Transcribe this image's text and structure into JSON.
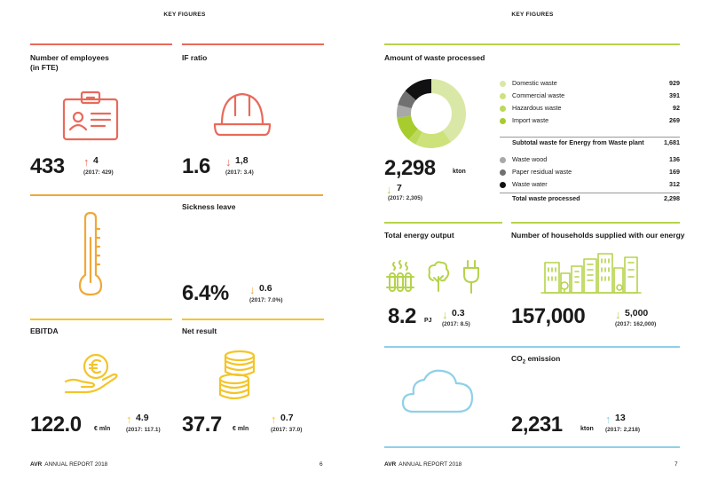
{
  "left_page": {
    "header": "KEY FIGURES",
    "employees": {
      "label_line1": "Number of employees",
      "label_line2": "(in FTE)",
      "value": "433",
      "arrow": "↑",
      "delta": "4",
      "previous": "(2017: 429)",
      "icon": "id-badge-icon"
    },
    "if_ratio": {
      "label": "IF ratio",
      "value": "1.6",
      "arrow": "↓",
      "delta": "1,8",
      "previous": "(2017: 3.4)",
      "icon": "hard-hat-icon"
    },
    "sickness": {
      "label": "Sickness leave",
      "value": "6.4%",
      "arrow": "↓",
      "delta": "0.6",
      "previous": "(2017: 7.0%)",
      "icon": "thermometer-icon"
    },
    "ebitda": {
      "label": "EBITDA",
      "value": "122.0",
      "unit": "€ mln",
      "arrow": "↑",
      "delta": "4.9",
      "previous": "(2017: 117.1)",
      "icon": "euro-coin-hand-icon"
    },
    "net_result": {
      "label": "Net result",
      "value": "37.7",
      "unit": "€ mln",
      "arrow": "↑",
      "delta": "0.7",
      "previous": "(2017: 37.0)",
      "icon": "coin-stack-icon"
    },
    "footer": {
      "brand": "AVR",
      "text": "ANNUAL REPORT 2018",
      "page": "6"
    }
  },
  "right_page": {
    "header": "KEY FIGURES",
    "waste": {
      "label": "Amount of waste processed",
      "value": "2,298",
      "unit": "kton",
      "arrow": "↓",
      "delta": "7",
      "previous": "(2017: 2,305)",
      "items": [
        {
          "name": "Domestic waste",
          "value": "929",
          "color": "#d9e8a6"
        },
        {
          "name": "Commercial waste",
          "value": "391",
          "color": "#cde27a"
        },
        {
          "name": "Hazardous waste",
          "value": "92",
          "color": "#bcd95a"
        },
        {
          "name": "Import waste",
          "value": "269",
          "color": "#a6cc2e"
        }
      ],
      "subtotal": {
        "name": "Subtotal waste for Energy from Waste plant",
        "value": "1,681"
      },
      "items2": [
        {
          "name": "Waste wood",
          "value": "136",
          "color": "#a8a8a8"
        },
        {
          "name": "Paper residual waste",
          "value": "169",
          "color": "#707070"
        },
        {
          "name": "Waste water",
          "value": "312",
          "color": "#111111"
        }
      ],
      "total": {
        "name": "Total waste processed",
        "value": "2,298"
      }
    },
    "energy": {
      "label": "Total energy output",
      "value": "8.2",
      "unit": "PJ",
      "arrow": "↓",
      "delta": "0.3",
      "previous": "(2017: 8.5)",
      "icons": [
        "radiator-icon",
        "tree-icon",
        "plug-icon"
      ]
    },
    "households": {
      "label": "Number of households supplied with our energy",
      "value": "157,000",
      "arrow": "↓",
      "delta": "5,000",
      "previous": "(2017: 162,000)",
      "icon": "city-skyline-icon"
    },
    "co2": {
      "label_main": "CO",
      "label_sub": "2",
      "label_end": " emission",
      "value": "2,231",
      "unit": "kton",
      "arrow": "↑",
      "delta": "13",
      "previous": "(2017: 2,218)",
      "icon": "cloud-icon"
    },
    "footer": {
      "brand": "AVR",
      "text": "ANNUAL REPORT 2018",
      "page": "7"
    }
  },
  "colors": {
    "red": "#e86a5a",
    "orange": "#f0a838",
    "yellow": "#f3c52a",
    "green": "#b5d34a",
    "blue": "#8fd0e8"
  }
}
